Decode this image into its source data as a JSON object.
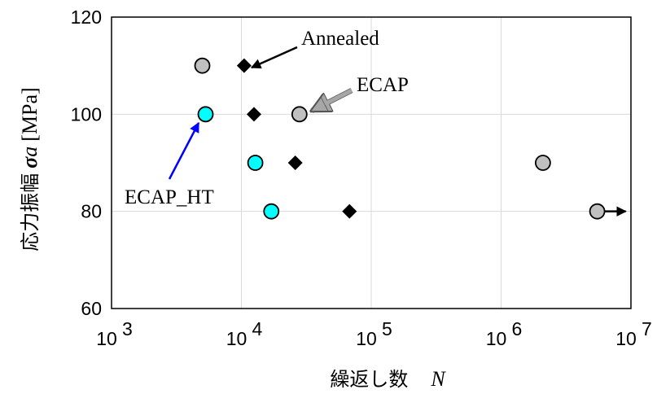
{
  "chart_data": {
    "type": "scatter",
    "x_scale": "log",
    "xlim": [
      1000,
      10000000
    ],
    "ylim": [
      60,
      120
    ],
    "grid": true,
    "y_ticks": [
      "60",
      "80",
      "100",
      "120"
    ],
    "x_ticks": [
      {
        "value": 1000,
        "base": "10",
        "exp": "3"
      },
      {
        "value": 10000,
        "base": "10",
        "exp": "4"
      },
      {
        "value": 100000,
        "base": "10",
        "exp": "5"
      },
      {
        "value": 1000000,
        "base": "10",
        "exp": "6"
      },
      {
        "value": 10000000,
        "base": "10",
        "exp": "7"
      }
    ],
    "ylabel": {
      "jp": "応力振幅",
      "sym": "σ",
      "sub": "a",
      "unit": "[MPa]"
    },
    "xlabel": {
      "jp": "繰返し数",
      "sym": "N"
    },
    "series": [
      {
        "name": "Annealed",
        "marker": "diamond",
        "color": "#000000",
        "points": [
          {
            "x": 10500,
            "y": 110
          },
          {
            "x": 12500,
            "y": 100
          },
          {
            "x": 26000,
            "y": 90
          },
          {
            "x": 68000,
            "y": 80
          }
        ]
      },
      {
        "name": "ECAP",
        "marker": "circle",
        "color": "#c0c0c0",
        "points": [
          {
            "x": 5000,
            "y": 110
          },
          {
            "x": 28000,
            "y": 100
          },
          {
            "x": 2100000,
            "y": 90
          },
          {
            "x": 5500000,
            "y": 80,
            "runout": true
          }
        ]
      },
      {
        "name": "ECAP_HT",
        "marker": "circle",
        "color": "#00ffff",
        "points": [
          {
            "x": 5300,
            "y": 100
          },
          {
            "x": 12800,
            "y": 90
          },
          {
            "x": 17000,
            "y": 80
          }
        ]
      }
    ],
    "annotations": [
      {
        "series": "Annealed",
        "text": "Annealed",
        "color": "#000000"
      },
      {
        "series": "ECAP",
        "text": "ECAP",
        "color": "#a6a6a6"
      },
      {
        "series": "ECAP_HT",
        "text": "ECAP_HT",
        "color": "#0000ff"
      }
    ]
  }
}
